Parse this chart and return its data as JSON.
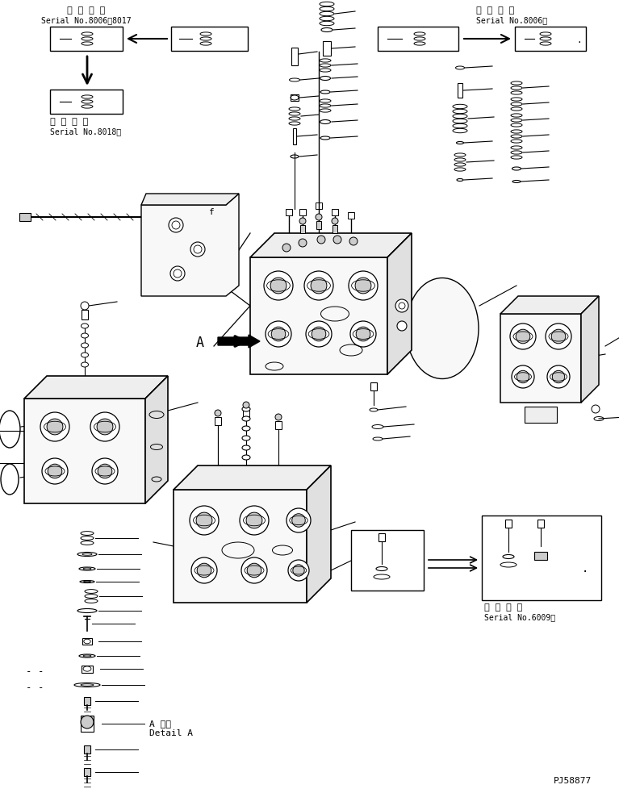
{
  "background_color": "#ffffff",
  "line_color": "#000000",
  "figsize": [
    7.67,
    9.79
  ],
  "dpi": 100,
  "text_color": "#000000",
  "labels": {
    "tl_title": "適 用 号 機",
    "tl_serial": "Serial No.8006～8017",
    "tl2_title": "適 用 号 機",
    "tl2_serial": "Serial No.8018～",
    "tr_title": "適 用 号 機",
    "tr_serial": "Serial No.8006～",
    "br_title": "適 用 号 機",
    "br_serial": "Serial No.6009～",
    "detail_jp": "A 詳細",
    "detail_en": "Detail A",
    "marker_a": "A",
    "part_no": "PJ58877"
  },
  "colors": {
    "face_front": "#f8f8f8",
    "face_top": "#eeeeee",
    "face_right": "#e0e0e0",
    "face_dark": "#cccccc"
  }
}
